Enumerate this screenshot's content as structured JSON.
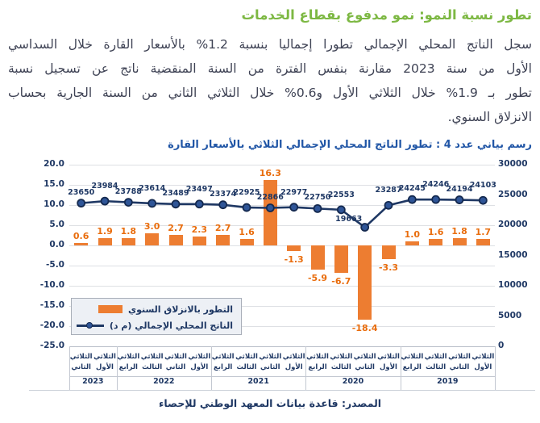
{
  "doc": {
    "title": "تطور نسبة النمو: نمو مدفوع بقطاع الخدمات",
    "title_color": "#7DB843",
    "paragraph_lines": [
      "سجل الناتج المحلي الإجمالي تطورا إجماليا بنسبة 1.2% بالأسعار القارة خلال السداسي",
      "الأول من سنة 2023 مقارنة بنفس الفترة من السنة المنقضية ناتج عن تسجيل نسبة",
      "تطور بـ 1.9% خلال الثلاثي الأول و0.6% خلال الثلاثي الثاني من السنة الجارية بحساب",
      "الانزلاق السنوي."
    ],
    "source": "المصدر: قاعدة بيانات المعهد الوطني للإحصاء"
  },
  "chart": {
    "heading": "رسم بياني عدد 4 : تطور الناتج المحلي الإجمالي الثلاثي بالأسعار القارة",
    "colors": {
      "bar": "#ED7D31",
      "bar_label": "#E96D0D",
      "line": "#1F3864",
      "marker_fill": "#2F5597",
      "marker_border": "#14294F",
      "navy": "#1F3864",
      "heading_blue": "#2156A6",
      "grid": "#DEE0E4"
    }
  },
  "chart_data": {
    "type": "combo-bar-line",
    "title": "تطور الناتج المحلي الإجمالي الثلاثي بالأسعار القارة",
    "categories": [
      "الثلاثي الثاني 2023",
      "الثلاثي الأول 2023",
      "الثلاثي الرابع 2022",
      "الثلاثي الثالث 2022",
      "الثلاثي الثاني 2022",
      "الثلاثي الأول 2022",
      "الثلاثي الرابع 2021",
      "الثلاثي الثالث 2021",
      "الثلاثي الثاني 2021",
      "الثلاثي الأول 2021",
      "الثلاثي الرابع 2020",
      "الثلاثي الثالث 2020",
      "الثلاثي الثاني 2020",
      "الثلاثي الأول 2020",
      "الثلاثي الرابع 2019",
      "الثلاثي الثالث 2019",
      "الثلاثي الثاني 2019",
      "الثلاثي الأول 2019"
    ],
    "series": [
      {
        "name": "التطور بالانزلاق السنوي",
        "type": "bar",
        "axis": "left",
        "unit": "%",
        "values": [
          0.6,
          1.9,
          1.8,
          3.0,
          2.7,
          2.3,
          2.7,
          1.6,
          16.3,
          -1.3,
          -5.9,
          -6.7,
          -18.4,
          -3.3,
          1.0,
          1.6,
          1.8,
          1.7
        ]
      },
      {
        "name": "الناتج المحلي الإجمالي (م د)",
        "type": "line",
        "axis": "right",
        "unit": "م د",
        "values": [
          23650,
          23984,
          23788,
          23614,
          23489,
          23497,
          23374,
          22925,
          22866,
          22977,
          22750,
          22553,
          19663,
          23287,
          24245,
          24246,
          24194,
          24103
        ]
      }
    ],
    "left_axis": {
      "range": [
        -25,
        20
      ],
      "ticks": [
        20,
        15,
        10,
        5,
        0,
        -5,
        -10,
        -15,
        -20,
        -25
      ],
      "format": "0.0"
    },
    "right_axis": {
      "range": [
        0,
        30000
      ],
      "ticks": [
        30000,
        25000,
        20000,
        15000,
        10000,
        5000,
        0
      ]
    },
    "x_axis": {
      "quarter_word": "الثلاثي",
      "ordinals": [
        "الثاني",
        "الأول",
        "الرابع",
        "الثالث",
        "الثاني",
        "الأول",
        "الرابع",
        "الثالث",
        "الثاني",
        "الأول",
        "الرابع",
        "الثالث",
        "الثاني",
        "الأول",
        "الرابع",
        "الثالث",
        "الثاني",
        "الأول"
      ],
      "year_groups": [
        {
          "label": "2023",
          "cells": 2
        },
        {
          "label": "2022",
          "cells": 4
        },
        {
          "label": "2021",
          "cells": 4
        },
        {
          "label": "2020",
          "cells": 4
        },
        {
          "label": "2019",
          "cells": 4
        }
      ]
    },
    "grid": true,
    "legend_position": "inside-bottom-left"
  }
}
